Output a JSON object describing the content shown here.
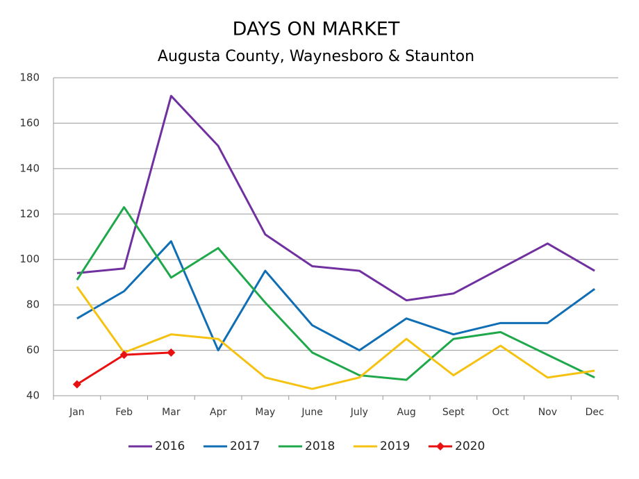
{
  "chart_data": {
    "type": "line",
    "title": "DAYS ON MARKET",
    "subtitle": "Augusta County, Waynesboro & Staunton",
    "categories": [
      "Jan",
      "Feb",
      "Mar",
      "Apr",
      "May",
      "June",
      "July",
      "Aug",
      "Sept",
      "Oct",
      "Nov",
      "Dec"
    ],
    "series": [
      {
        "name": "2016",
        "color": "#7030a0",
        "values": [
          94,
          96,
          172,
          150,
          111,
          97,
          95,
          82,
          85,
          96,
          107,
          95
        ]
      },
      {
        "name": "2017",
        "color": "#0f6eb4",
        "values": [
          74,
          86,
          108,
          60,
          95,
          71,
          60,
          74,
          67,
          72,
          72,
          87
        ]
      },
      {
        "name": "2018",
        "color": "#1ea84a",
        "values": [
          91,
          123,
          92,
          105,
          81,
          59,
          49,
          47,
          65,
          68,
          58,
          48
        ]
      },
      {
        "name": "2019",
        "color": "#f5c211",
        "values": [
          88,
          59,
          67,
          65,
          48,
          43,
          48,
          65,
          49,
          62,
          48,
          51
        ]
      },
      {
        "name": "2020",
        "color": "#e81010",
        "marker": "diamond",
        "values": [
          45,
          58,
          59,
          null,
          null,
          null,
          null,
          null,
          null,
          null,
          null,
          null
        ]
      }
    ],
    "ylim": [
      40,
      180
    ],
    "yticks": [
      40,
      60,
      80,
      100,
      120,
      140,
      160,
      180
    ],
    "grid": true,
    "legend": "bottom"
  }
}
